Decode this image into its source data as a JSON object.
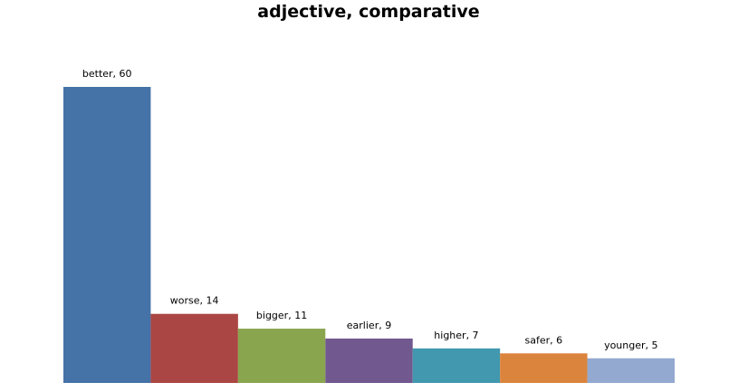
{
  "chart_data": {
    "type": "bar",
    "title": "adjective, comparative",
    "categories": [
      "better",
      "worse",
      "bigger",
      "earlier",
      "higher",
      "safer",
      "younger"
    ],
    "values": [
      60,
      14,
      11,
      9,
      7,
      6,
      5
    ],
    "data_labels": [
      "better, 60",
      "worse, 14",
      "bigger, 11",
      "earlier, 9",
      "higher, 7",
      "safer, 6",
      "younger, 5"
    ],
    "colors": [
      "#4572a7",
      "#aa4643",
      "#89a54e",
      "#71588f",
      "#4198af",
      "#db843d",
      "#93a9cf"
    ],
    "ylim": [
      0,
      60
    ],
    "grid": false,
    "legend": "none"
  }
}
